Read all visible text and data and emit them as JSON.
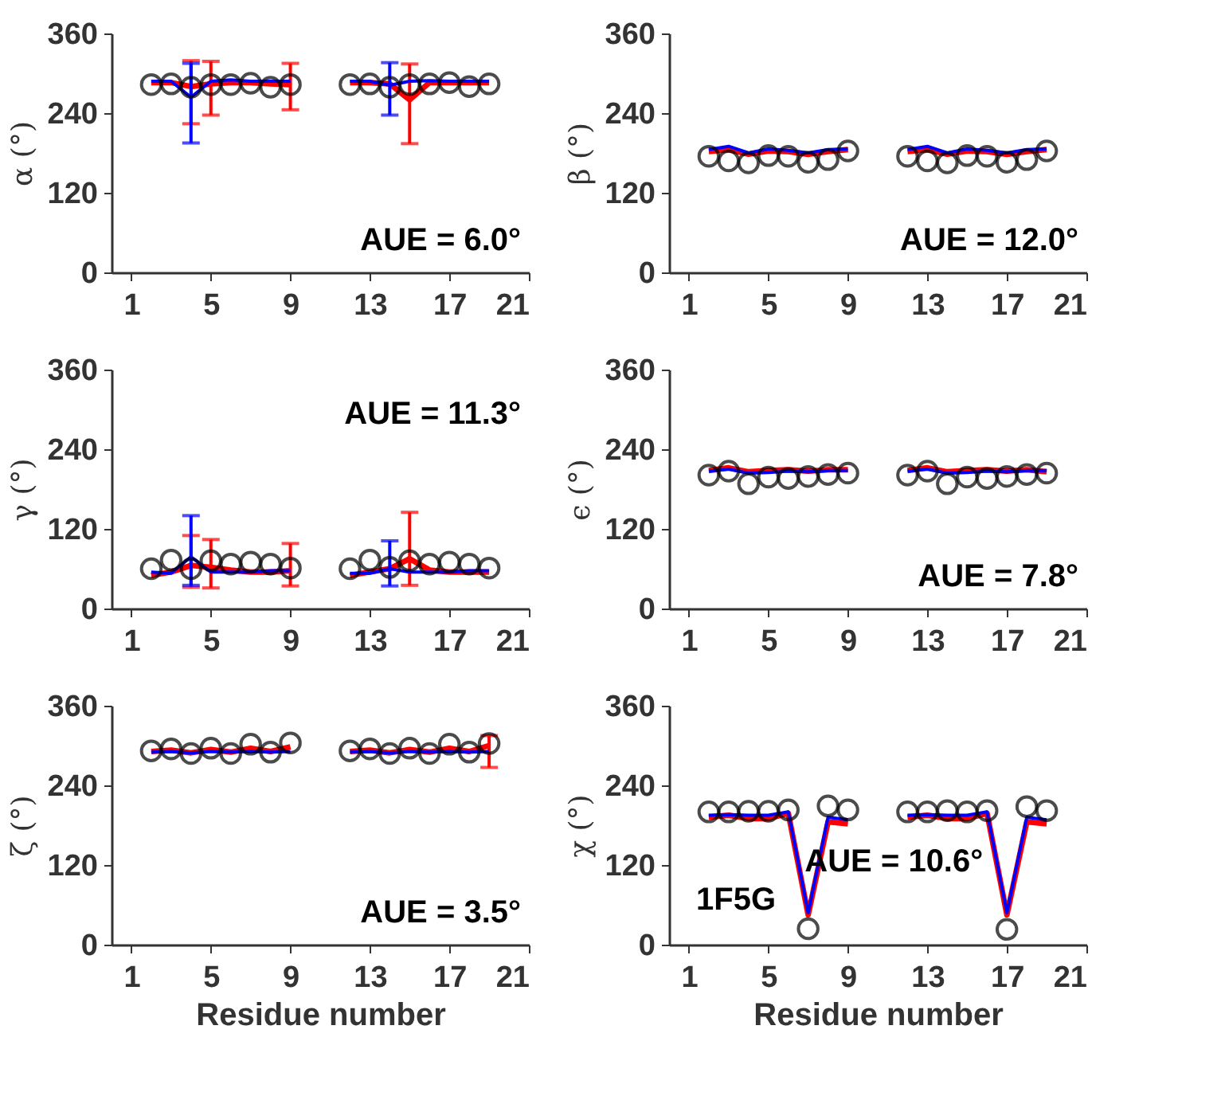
{
  "chart_data": [
    {
      "type": "line",
      "ylabel": "α (°)",
      "x": [
        2,
        3,
        4,
        5,
        6,
        7,
        8,
        9,
        10,
        11,
        12,
        13,
        14,
        15,
        16,
        17,
        18,
        19
      ],
      "xlim": [
        0,
        21
      ],
      "xticks": [
        1,
        5,
        9,
        13,
        17,
        21
      ],
      "ylim": [
        0,
        360
      ],
      "yticks": [
        0,
        120,
        240,
        360
      ],
      "annotations": [
        "AUE = 6.0°"
      ],
      "series": [
        {
          "type": "line",
          "color": "#ff0000",
          "marker": "none",
          "values": [
            286,
            286,
            280,
            284,
            286,
            286,
            284,
            283,
            null,
            null,
            286,
            286,
            284,
            260,
            286,
            286,
            286,
            286
          ],
          "errors": [
            null,
            null,
            [
              224,
              319
            ],
            [
              237,
              318
            ],
            null,
            null,
            null,
            [
              245,
              315
            ],
            null,
            null,
            null,
            null,
            null,
            [
              194,
              314
            ],
            null,
            null,
            null,
            null
          ]
        },
        {
          "type": "line",
          "color": "#0000ff",
          "marker": "none",
          "values": [
            288,
            288,
            264,
            288,
            290,
            288,
            288,
            288,
            null,
            null,
            288,
            288,
            282,
            288,
            289,
            288,
            288,
            288
          ],
          "errors": [
            null,
            null,
            [
              195,
              315
            ],
            null,
            null,
            null,
            null,
            null,
            null,
            null,
            null,
            null,
            [
              237,
              316
            ],
            null,
            null,
            null,
            null,
            null
          ]
        },
        {
          "type": "scatter",
          "color": "#000000",
          "marker": "circle",
          "values": [
            283,
            284,
            279,
            283,
            283,
            285,
            279,
            283,
            null,
            null,
            283,
            284,
            279,
            283,
            284,
            286,
            280,
            284
          ]
        }
      ]
    },
    {
      "type": "line",
      "ylabel": "β (°)",
      "x": [
        2,
        3,
        4,
        5,
        6,
        7,
        8,
        9,
        10,
        11,
        12,
        13,
        14,
        15,
        16,
        17,
        18,
        19
      ],
      "xlim": [
        0,
        21
      ],
      "xticks": [
        1,
        5,
        9,
        13,
        17,
        21
      ],
      "ylim": [
        0,
        360
      ],
      "yticks": [
        0,
        120,
        240,
        360
      ],
      "annotations": [
        "AUE = 12.0°"
      ],
      "series": [
        {
          "type": "line",
          "color": "#ff0000",
          "marker": "none",
          "values": [
            182,
            185,
            178,
            183,
            182,
            178,
            182,
            185,
            null,
            null,
            182,
            185,
            178,
            183,
            182,
            178,
            182,
            185
          ]
        },
        {
          "type": "line",
          "color": "#0000ff",
          "marker": "none",
          "values": [
            185,
            190,
            180,
            186,
            184,
            180,
            185,
            186,
            null,
            null,
            185,
            190,
            180,
            186,
            184,
            180,
            185,
            186
          ]
        },
        {
          "type": "scatter",
          "color": "#000000",
          "marker": "circle",
          "values": [
            175,
            168,
            165,
            176,
            175,
            166,
            170,
            183,
            null,
            null,
            175,
            168,
            165,
            176,
            175,
            166,
            170,
            183
          ]
        }
      ]
    },
    {
      "type": "line",
      "ylabel": "γ (°)",
      "x": [
        2,
        3,
        4,
        5,
        6,
        7,
        8,
        9,
        10,
        11,
        12,
        13,
        14,
        15,
        16,
        17,
        18,
        19
      ],
      "xlim": [
        0,
        21
      ],
      "xticks": [
        1,
        5,
        9,
        13,
        17,
        21
      ],
      "ylim": [
        0,
        360
      ],
      "yticks": [
        0,
        120,
        240,
        360
      ],
      "annotations": [
        "AUE = 11.3°"
      ],
      "series": [
        {
          "type": "line",
          "color": "#ff0000",
          "marker": "none",
          "values": [
            50,
            55,
            65,
            62,
            58,
            55,
            55,
            57,
            null,
            null,
            50,
            55,
            60,
            75,
            58,
            55,
            55,
            55
          ],
          "errors": [
            null,
            null,
            [
              32,
              110
            ],
            [
              31,
              104
            ],
            null,
            null,
            null,
            [
              34,
              98
            ],
            null,
            null,
            null,
            null,
            null,
            [
              35,
              145
            ],
            null,
            null,
            null,
            null
          ]
        },
        {
          "type": "line",
          "color": "#0000ff",
          "marker": "none",
          "values": [
            55,
            53,
            78,
            55,
            55,
            55,
            57,
            57,
            null,
            null,
            53,
            53,
            60,
            55,
            55,
            55,
            57,
            57
          ],
          "errors": [
            null,
            null,
            [
              35,
              140
            ],
            null,
            null,
            null,
            null,
            null,
            null,
            null,
            null,
            null,
            [
              34,
              102
            ],
            null,
            null,
            null,
            null,
            null
          ]
        },
        {
          "type": "scatter",
          "color": "#000000",
          "marker": "circle",
          "values": [
            60,
            73,
            60,
            72,
            67,
            70,
            67,
            61,
            null,
            null,
            60,
            73,
            62,
            72,
            67,
            70,
            67,
            61
          ]
        }
      ]
    },
    {
      "type": "line",
      "ylabel": "ϵ (°)",
      "x": [
        2,
        3,
        4,
        5,
        6,
        7,
        8,
        9,
        10,
        11,
        12,
        13,
        14,
        15,
        16,
        17,
        18,
        19
      ],
      "xlim": [
        0,
        21
      ],
      "xticks": [
        1,
        5,
        9,
        13,
        17,
        21
      ],
      "ylim": [
        0,
        360
      ],
      "yticks": [
        0,
        120,
        240,
        360
      ],
      "annotations": [
        "AUE = 7.8°"
      ],
      "series": [
        {
          "type": "line",
          "color": "#ff0000",
          "marker": "none",
          "values": [
            208,
            212,
            206,
            208,
            209,
            207,
            209,
            209,
            null,
            null,
            208,
            212,
            206,
            208,
            209,
            207,
            209,
            206
          ]
        },
        {
          "type": "line",
          "color": "#0000ff",
          "marker": "none",
          "values": [
            207,
            210,
            204,
            205,
            207,
            206,
            208,
            208,
            null,
            null,
            207,
            210,
            204,
            205,
            207,
            206,
            208,
            208
          ]
        },
        {
          "type": "scatter",
          "color": "#000000",
          "marker": "circle",
          "values": [
            201,
            207,
            188,
            198,
            196,
            199,
            202,
            204,
            null,
            null,
            201,
            207,
            188,
            198,
            196,
            199,
            202,
            204
          ]
        }
      ]
    },
    {
      "type": "line",
      "ylabel": "ζ (°)",
      "xlabel": "Residue number",
      "x": [
        2,
        3,
        4,
        5,
        6,
        7,
        8,
        9,
        10,
        11,
        12,
        13,
        14,
        15,
        16,
        17,
        18,
        19
      ],
      "xlim": [
        0,
        21
      ],
      "xticks": [
        1,
        5,
        9,
        13,
        17,
        21
      ],
      "ylim": [
        0,
        360
      ],
      "yticks": [
        0,
        120,
        240,
        360
      ],
      "annotations": [
        "AUE = 3.5°"
      ],
      "series": [
        {
          "type": "line",
          "color": "#ff0000",
          "marker": "none",
          "values": [
            291,
            293,
            289,
            294,
            290,
            296,
            291,
            298,
            null,
            null,
            291,
            293,
            289,
            294,
            290,
            296,
            291,
            300
          ],
          "errors": [
            null,
            null,
            null,
            null,
            null,
            null,
            null,
            null,
            null,
            null,
            null,
            null,
            null,
            null,
            null,
            null,
            null,
            [
              267,
              315
            ]
          ]
        },
        {
          "type": "line",
          "color": "#0000ff",
          "marker": "none",
          "values": [
            290,
            291,
            289,
            291,
            290,
            291,
            290,
            291,
            null,
            null,
            290,
            291,
            289,
            291,
            290,
            291,
            290,
            291
          ]
        },
        {
          "type": "scatter",
          "color": "#000000",
          "marker": "circle",
          "values": [
            292,
            295,
            288,
            296,
            288,
            302,
            290,
            304,
            null,
            null,
            292,
            295,
            288,
            296,
            288,
            302,
            290,
            303
          ]
        }
      ]
    },
    {
      "type": "line",
      "ylabel": "χ (°)",
      "xlabel": "Residue number",
      "x": [
        2,
        3,
        4,
        5,
        6,
        7,
        8,
        9,
        10,
        11,
        12,
        13,
        14,
        15,
        16,
        17,
        18,
        19
      ],
      "xlim": [
        0,
        21
      ],
      "xticks": [
        1,
        5,
        9,
        13,
        17,
        21
      ],
      "ylim": [
        0,
        360
      ],
      "yticks": [
        0,
        120,
        240,
        360
      ],
      "annotations": [
        "1F5G",
        "AUE = 10.6°"
      ],
      "series": [
        {
          "type": "line",
          "color": "#ff0000",
          "marker": "none",
          "values": [
            192,
            195,
            190,
            190,
            198,
            45,
            185,
            182,
            null,
            null,
            192,
            195,
            190,
            190,
            198,
            45,
            185,
            182
          ]
        },
        {
          "type": "line",
          "color": "#0000ff",
          "marker": "none",
          "values": [
            195,
            196,
            195,
            195,
            200,
            48,
            192,
            188,
            null,
            null,
            195,
            196,
            195,
            195,
            200,
            48,
            192,
            188
          ]
        },
        {
          "type": "scatter",
          "color": "#000000",
          "marker": "circle",
          "values": [
            200,
            200,
            201,
            201,
            203,
            24,
            209,
            203,
            null,
            null,
            200,
            200,
            202,
            200,
            202,
            23,
            208,
            202
          ]
        }
      ]
    }
  ]
}
